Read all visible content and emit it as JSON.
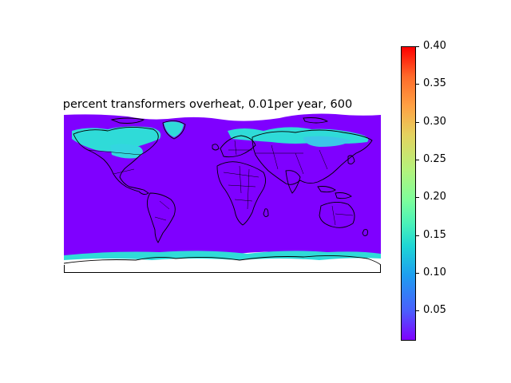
{
  "title": "percent transformers overheat, 0.01per year, 600",
  "colormap": "rainbow",
  "colorbar": {
    "min": 0.01,
    "max": 0.4,
    "ticks": [
      "0.05",
      "0.10",
      "0.15",
      "0.20",
      "0.25",
      "0.30",
      "0.35",
      "0.40"
    ]
  },
  "map": {
    "projection": "plate-carree",
    "borders": true,
    "coastlines": true,
    "ocean_color": "#7f00ff",
    "land_color": "#7f00ff",
    "high_latitude_color": "#2fdbd8",
    "high_value_regions": [
      "Canada",
      "Alaska",
      "Greenland",
      "Scandinavia",
      "Russia",
      "Antarctica coast"
    ]
  }
}
